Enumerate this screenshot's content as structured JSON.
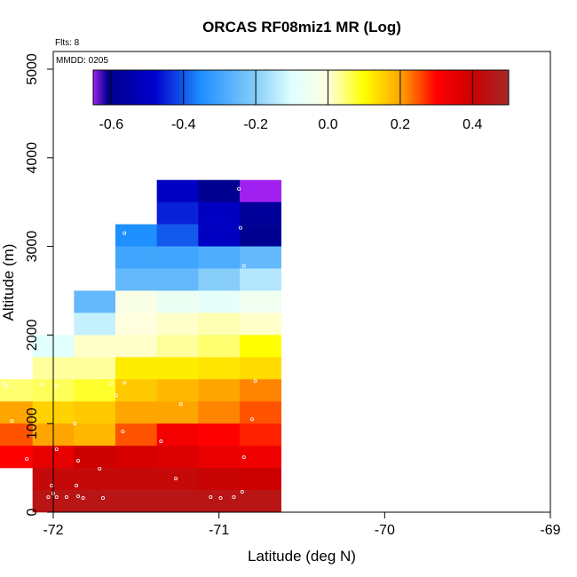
{
  "chart_data": {
    "type": "heatmap",
    "title": "ORCAS RF08miz1 MR (Log)",
    "notes": {
      "flights": "Flts: 8",
      "date": "MMDD: 0205"
    },
    "xlabel": "Latitude (deg N)",
    "ylabel": "Altitude (m)",
    "xlim": [
      -72,
      -69
    ],
    "ylim": [
      0,
      5200
    ],
    "xticks": [
      -72,
      -71,
      -70,
      -69
    ],
    "yticks": [
      0,
      1000,
      2000,
      3000,
      4000,
      5000
    ],
    "colorbar": {
      "range": [
        -0.65,
        0.5
      ],
      "ticks": [
        -0.6,
        -0.4,
        -0.2,
        0.0,
        0.2,
        0.4
      ],
      "tick_labels": [
        "-0.6",
        "-0.4",
        "-0.2",
        "0.0",
        "0.2",
        "0.4"
      ],
      "stops": [
        {
          "v": -0.65,
          "c": "#a020f0"
        },
        {
          "v": -0.61,
          "c": "#00008b"
        },
        {
          "v": -0.48,
          "c": "#0000cd"
        },
        {
          "v": -0.35,
          "c": "#1e90ff"
        },
        {
          "v": -0.2,
          "c": "#87cefa"
        },
        {
          "v": -0.1,
          "c": "#e0ffff"
        },
        {
          "v": 0.0,
          "c": "#ffffe0"
        },
        {
          "v": 0.1,
          "c": "#ffff00"
        },
        {
          "v": 0.2,
          "c": "#ffa500"
        },
        {
          "v": 0.3,
          "c": "#ff0000"
        },
        {
          "v": 0.4,
          "c": "#cd0000"
        },
        {
          "v": 0.5,
          "c": "#a52a2a"
        }
      ]
    },
    "cell_size": {
      "lat_deg": 0.25,
      "alt_m": 250
    },
    "cells": [
      {
        "lat": -71.25,
        "alt": 3500,
        "v": -0.5
      },
      {
        "lat": -71.0,
        "alt": 3500,
        "v": -0.6
      },
      {
        "lat": -70.75,
        "alt": 3500,
        "v": -0.65
      },
      {
        "lat": -71.25,
        "alt": 3250,
        "v": -0.45
      },
      {
        "lat": -71.0,
        "alt": 3250,
        "v": -0.5
      },
      {
        "lat": -70.75,
        "alt": 3250,
        "v": -0.58
      },
      {
        "lat": -71.5,
        "alt": 3000,
        "v": -0.35
      },
      {
        "lat": -71.25,
        "alt": 3000,
        "v": -0.4
      },
      {
        "lat": -71.0,
        "alt": 3000,
        "v": -0.5
      },
      {
        "lat": -70.75,
        "alt": 3000,
        "v": -0.6
      },
      {
        "lat": -71.5,
        "alt": 2750,
        "v": -0.3
      },
      {
        "lat": -71.25,
        "alt": 2750,
        "v": -0.3
      },
      {
        "lat": -71.0,
        "alt": 2750,
        "v": -0.28
      },
      {
        "lat": -70.75,
        "alt": 2750,
        "v": -0.25
      },
      {
        "lat": -71.5,
        "alt": 2500,
        "v": -0.25
      },
      {
        "lat": -71.25,
        "alt": 2500,
        "v": -0.25
      },
      {
        "lat": -71.0,
        "alt": 2500,
        "v": -0.2
      },
      {
        "lat": -70.75,
        "alt": 2500,
        "v": -0.15
      },
      {
        "lat": -71.75,
        "alt": 2250,
        "v": -0.25
      },
      {
        "lat": -71.5,
        "alt": 2250,
        "v": -0.02
      },
      {
        "lat": -71.25,
        "alt": 2250,
        "v": -0.06
      },
      {
        "lat": -71.0,
        "alt": 2250,
        "v": -0.08
      },
      {
        "lat": -70.75,
        "alt": 2250,
        "v": -0.05
      },
      {
        "lat": -71.75,
        "alt": 2000,
        "v": -0.13
      },
      {
        "lat": -71.5,
        "alt": 2000,
        "v": 0.0
      },
      {
        "lat": -71.25,
        "alt": 2000,
        "v": 0.01
      },
      {
        "lat": -71.0,
        "alt": 2000,
        "v": 0.02
      },
      {
        "lat": -70.75,
        "alt": 2000,
        "v": 0.01
      },
      {
        "lat": -72.0,
        "alt": 1750,
        "v": -0.1
      },
      {
        "lat": -71.75,
        "alt": 1750,
        "v": 0.01
      },
      {
        "lat": -71.5,
        "alt": 1750,
        "v": 0.01
      },
      {
        "lat": -71.25,
        "alt": 1750,
        "v": 0.03
      },
      {
        "lat": -71.0,
        "alt": 1750,
        "v": 0.05
      },
      {
        "lat": -70.75,
        "alt": 1750,
        "v": 0.1
      },
      {
        "lat": -72.0,
        "alt": 1500,
        "v": 0.03
      },
      {
        "lat": -71.75,
        "alt": 1500,
        "v": 0.03
      },
      {
        "lat": -71.5,
        "alt": 1500,
        "v": 0.12
      },
      {
        "lat": -71.25,
        "alt": 1500,
        "v": 0.12
      },
      {
        "lat": -71.0,
        "alt": 1500,
        "v": 0.13
      },
      {
        "lat": -70.75,
        "alt": 1500,
        "v": 0.14
      },
      {
        "lat": -72.25,
        "alt": 1250,
        "v": 0.05
      },
      {
        "lat": -72.0,
        "alt": 1250,
        "v": 0.06
      },
      {
        "lat": -71.75,
        "alt": 1250,
        "v": 0.08
      },
      {
        "lat": -71.5,
        "alt": 1250,
        "v": 0.16
      },
      {
        "lat": -71.25,
        "alt": 1250,
        "v": 0.18
      },
      {
        "lat": -71.0,
        "alt": 1250,
        "v": 0.2
      },
      {
        "lat": -70.75,
        "alt": 1250,
        "v": 0.22
      },
      {
        "lat": -72.25,
        "alt": 1000,
        "v": 0.2
      },
      {
        "lat": -72.0,
        "alt": 1000,
        "v": 0.15
      },
      {
        "lat": -71.75,
        "alt": 1000,
        "v": 0.16
      },
      {
        "lat": -71.5,
        "alt": 1000,
        "v": 0.2
      },
      {
        "lat": -71.25,
        "alt": 1000,
        "v": 0.2
      },
      {
        "lat": -71.0,
        "alt": 1000,
        "v": 0.22
      },
      {
        "lat": -70.75,
        "alt": 1000,
        "v": 0.25
      },
      {
        "lat": -72.25,
        "alt": 750,
        "v": 0.25
      },
      {
        "lat": -72.0,
        "alt": 750,
        "v": 0.2
      },
      {
        "lat": -71.75,
        "alt": 750,
        "v": 0.18
      },
      {
        "lat": -71.5,
        "alt": 750,
        "v": 0.25
      },
      {
        "lat": -71.25,
        "alt": 750,
        "v": 0.32
      },
      {
        "lat": -71.0,
        "alt": 750,
        "v": 0.3
      },
      {
        "lat": -70.75,
        "alt": 750,
        "v": 0.28
      },
      {
        "lat": -72.25,
        "alt": 500,
        "v": 0.3
      },
      {
        "lat": -72.0,
        "alt": 500,
        "v": 0.35
      },
      {
        "lat": -71.75,
        "alt": 500,
        "v": 0.4
      },
      {
        "lat": -71.5,
        "alt": 500,
        "v": 0.38
      },
      {
        "lat": -71.25,
        "alt": 500,
        "v": 0.37
      },
      {
        "lat": -71.0,
        "alt": 500,
        "v": 0.34
      },
      {
        "lat": -70.75,
        "alt": 500,
        "v": 0.33
      },
      {
        "lat": -72.0,
        "alt": 250,
        "v": 0.42
      },
      {
        "lat": -71.75,
        "alt": 250,
        "v": 0.42
      },
      {
        "lat": -71.5,
        "alt": 250,
        "v": 0.42
      },
      {
        "lat": -71.25,
        "alt": 250,
        "v": 0.42
      },
      {
        "lat": -71.0,
        "alt": 250,
        "v": 0.41
      },
      {
        "lat": -70.75,
        "alt": 250,
        "v": 0.4
      },
      {
        "lat": -72.0,
        "alt": 0,
        "v": 0.45
      },
      {
        "lat": -71.75,
        "alt": 0,
        "v": 0.45
      },
      {
        "lat": -71.5,
        "alt": 0,
        "v": 0.45
      },
      {
        "lat": -71.25,
        "alt": 0,
        "v": 0.45
      },
      {
        "lat": -71.0,
        "alt": 0,
        "v": 0.45
      },
      {
        "lat": -70.75,
        "alt": 0,
        "v": 0.45
      }
    ],
    "points": [
      [
        -71.43,
        3590
      ],
      [
        -70.88,
        3650
      ],
      [
        -70.87,
        3210
      ],
      [
        -71.57,
        3150
      ],
      [
        -71.68,
        2720
      ],
      [
        -70.85,
        2780
      ],
      [
        -70.81,
        2340
      ],
      [
        -72.3,
        1450
      ],
      [
        -72.28,
        1420
      ],
      [
        -72.07,
        1440
      ],
      [
        -71.98,
        1420
      ],
      [
        -71.65,
        1450
      ],
      [
        -71.57,
        1460
      ],
      [
        -71.62,
        1320
      ],
      [
        -71.23,
        1220
      ],
      [
        -70.78,
        1480
      ],
      [
        -72.25,
        1030
      ],
      [
        -70.8,
        1050
      ],
      [
        -71.87,
        1000
      ],
      [
        -71.58,
        910
      ],
      [
        -71.35,
        800
      ],
      [
        -72.16,
        600
      ],
      [
        -71.98,
        710
      ],
      [
        -71.85,
        580
      ],
      [
        -71.72,
        490
      ],
      [
        -70.85,
        620
      ],
      [
        -71.26,
        380
      ],
      [
        -72.0,
        210
      ],
      [
        -72.01,
        300
      ],
      [
        -71.86,
        300
      ],
      [
        -72.03,
        170
      ],
      [
        -71.98,
        170
      ],
      [
        -71.92,
        170
      ],
      [
        -71.85,
        180
      ],
      [
        -71.82,
        160
      ],
      [
        -71.7,
        160
      ],
      [
        -71.05,
        170
      ],
      [
        -70.99,
        160
      ],
      [
        -70.91,
        170
      ],
      [
        -70.86,
        230
      ]
    ]
  }
}
